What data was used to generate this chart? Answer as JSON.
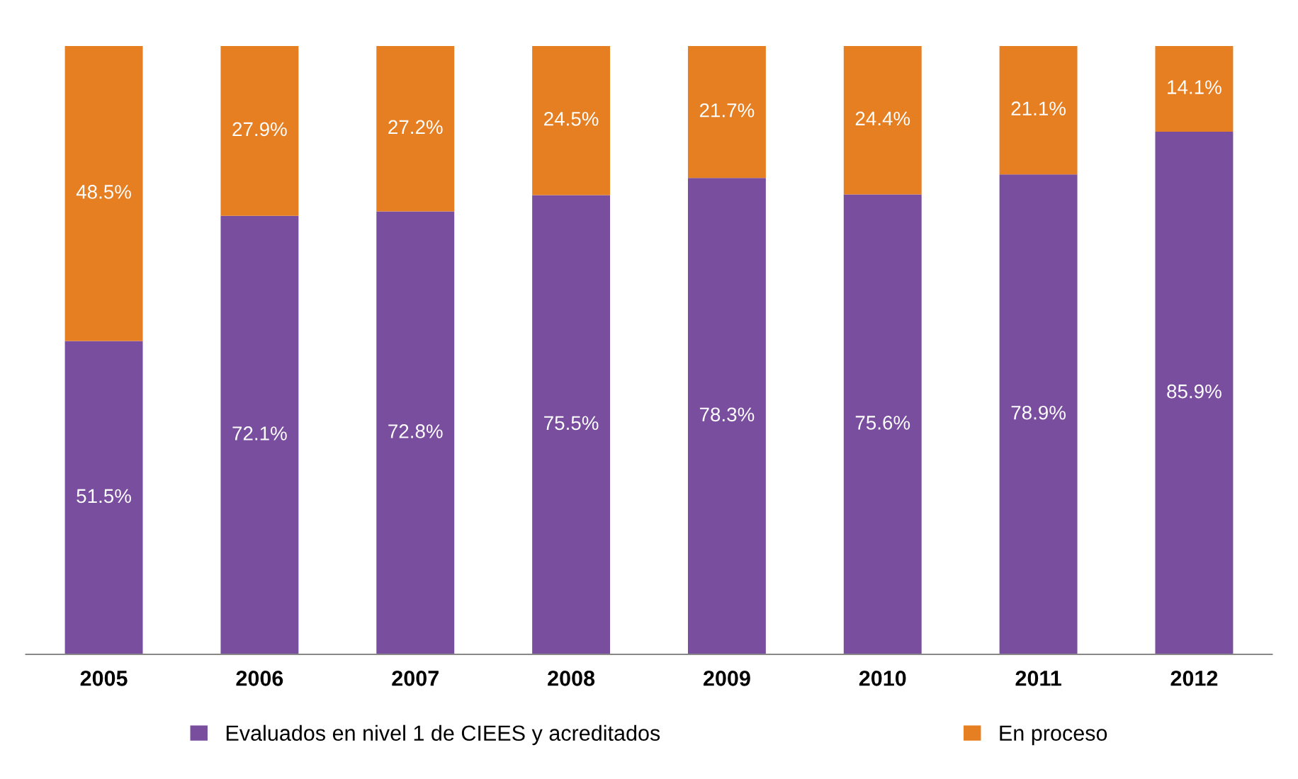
{
  "chart_data": {
    "type": "bar",
    "stacked": true,
    "legend": "bottom",
    "grid": false,
    "tick_labels": "x",
    "categories": [
      "2005",
      "2006",
      "2007",
      "2008",
      "2009",
      "2010",
      "2011",
      "2012"
    ],
    "series": [
      {
        "name": "Evaluados en nivel 1 de CIEES y acreditados",
        "color": "#7a4e9e",
        "values": [
          51.5,
          72.1,
          72.8,
          75.5,
          78.3,
          75.6,
          78.9,
          85.9
        ],
        "value_labels": [
          "51.5%",
          "72.1%",
          "72.8%",
          "75.5%",
          "78.3%",
          "75.6%",
          "78.9%",
          "85.9%"
        ]
      },
      {
        "name": "En proceso",
        "color": "#e67e22",
        "values": [
          48.5,
          27.9,
          27.2,
          24.5,
          21.7,
          24.4,
          21.1,
          14.1
        ],
        "value_labels": [
          "48.5%",
          "27.9%",
          "27.2%",
          "24.5%",
          "21.7%",
          "24.4%",
          "21.1%",
          "14.1%"
        ]
      }
    ]
  }
}
